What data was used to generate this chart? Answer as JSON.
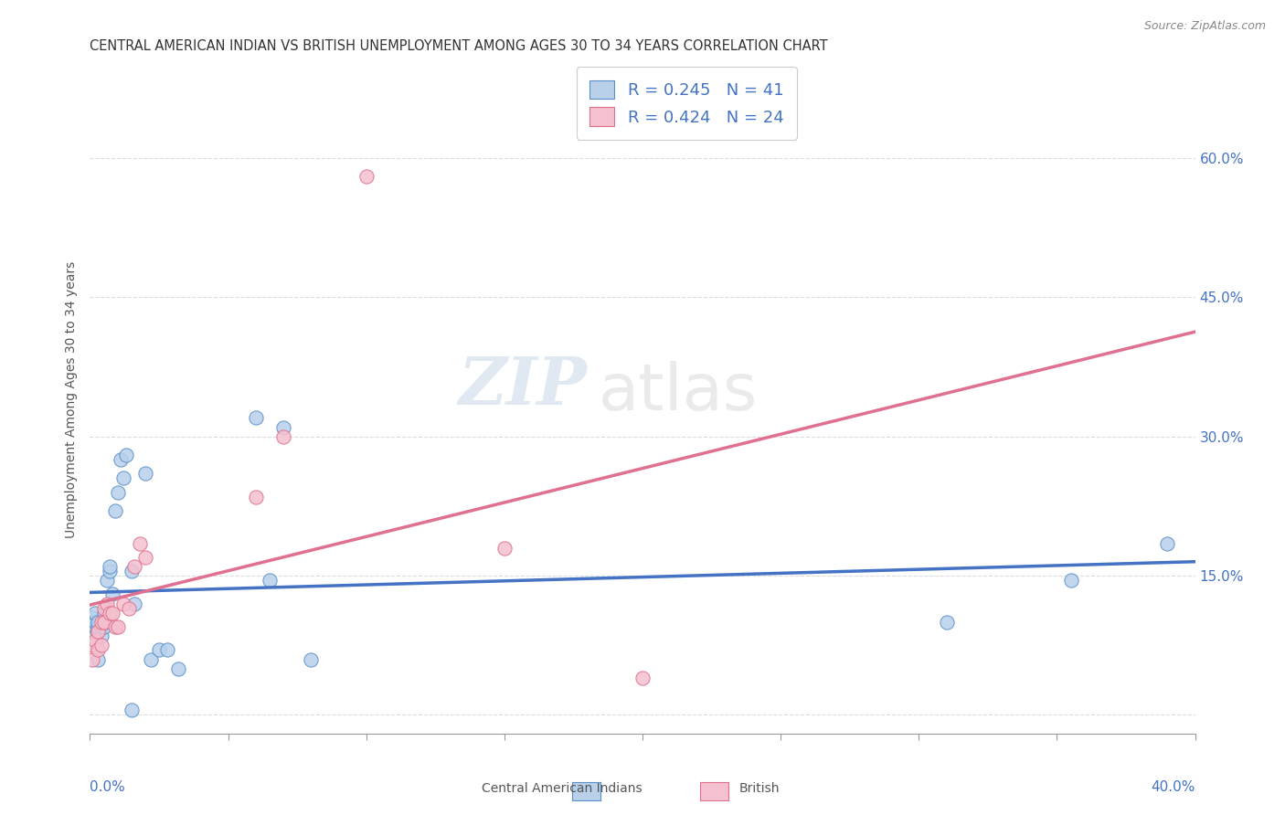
{
  "title": "CENTRAL AMERICAN INDIAN VS BRITISH UNEMPLOYMENT AMONG AGES 30 TO 34 YEARS CORRELATION CHART",
  "source": "Source: ZipAtlas.com",
  "ylabel": "Unemployment Among Ages 30 to 34 years",
  "legend_label1": "Central American Indians",
  "legend_label2": "British",
  "r1": 0.245,
  "n1": 41,
  "r2": 0.424,
  "n2": 24,
  "color_blue_fill": "#b8d0ea",
  "color_blue_edge": "#5b8fc9",
  "color_pink_fill": "#f5c0cf",
  "color_pink_edge": "#e0708a",
  "color_blue_line": "#4472C4",
  "color_pink_line": "#e07090",
  "color_raxis": "#4472C4",
  "xlim": [
    0.0,
    0.4
  ],
  "ylim": [
    -0.02,
    0.7
  ],
  "yticks": [
    0.0,
    0.15,
    0.3,
    0.45,
    0.6
  ],
  "ytick_labels": [
    "",
    "15.0%",
    "30.0%",
    "45.0%",
    "60.0%"
  ],
  "blue_x": [
    0.001,
    0.001,
    0.001,
    0.002,
    0.002,
    0.002,
    0.002,
    0.003,
    0.003,
    0.003,
    0.003,
    0.004,
    0.004,
    0.005,
    0.005,
    0.005,
    0.006,
    0.006,
    0.007,
    0.007,
    0.008,
    0.009,
    0.01,
    0.011,
    0.012,
    0.013,
    0.015,
    0.016,
    0.02,
    0.022,
    0.025,
    0.028,
    0.032,
    0.06,
    0.065,
    0.07,
    0.08,
    0.015,
    0.31,
    0.355,
    0.39
  ],
  "blue_y": [
    0.09,
    0.1,
    0.105,
    0.085,
    0.095,
    0.1,
    0.11,
    0.09,
    0.095,
    0.1,
    0.06,
    0.085,
    0.095,
    0.095,
    0.1,
    0.11,
    0.115,
    0.145,
    0.155,
    0.16,
    0.13,
    0.22,
    0.24,
    0.275,
    0.255,
    0.28,
    0.005,
    0.12,
    0.26,
    0.06,
    0.07,
    0.07,
    0.05,
    0.32,
    0.145,
    0.31,
    0.06,
    0.155,
    0.1,
    0.145,
    0.185
  ],
  "pink_x": [
    0.001,
    0.001,
    0.002,
    0.003,
    0.003,
    0.004,
    0.004,
    0.005,
    0.005,
    0.006,
    0.007,
    0.008,
    0.009,
    0.01,
    0.012,
    0.014,
    0.016,
    0.018,
    0.02,
    0.06,
    0.07,
    0.1,
    0.15,
    0.2
  ],
  "pink_y": [
    0.06,
    0.075,
    0.08,
    0.07,
    0.09,
    0.075,
    0.1,
    0.1,
    0.115,
    0.12,
    0.11,
    0.11,
    0.095,
    0.095,
    0.12,
    0.115,
    0.16,
    0.185,
    0.17,
    0.235,
    0.3,
    0.58,
    0.18,
    0.04
  ],
  "watermark_top": "ZIP",
  "watermark_bot": "atlas",
  "background_color": "#ffffff",
  "grid_color": "#cccccc"
}
